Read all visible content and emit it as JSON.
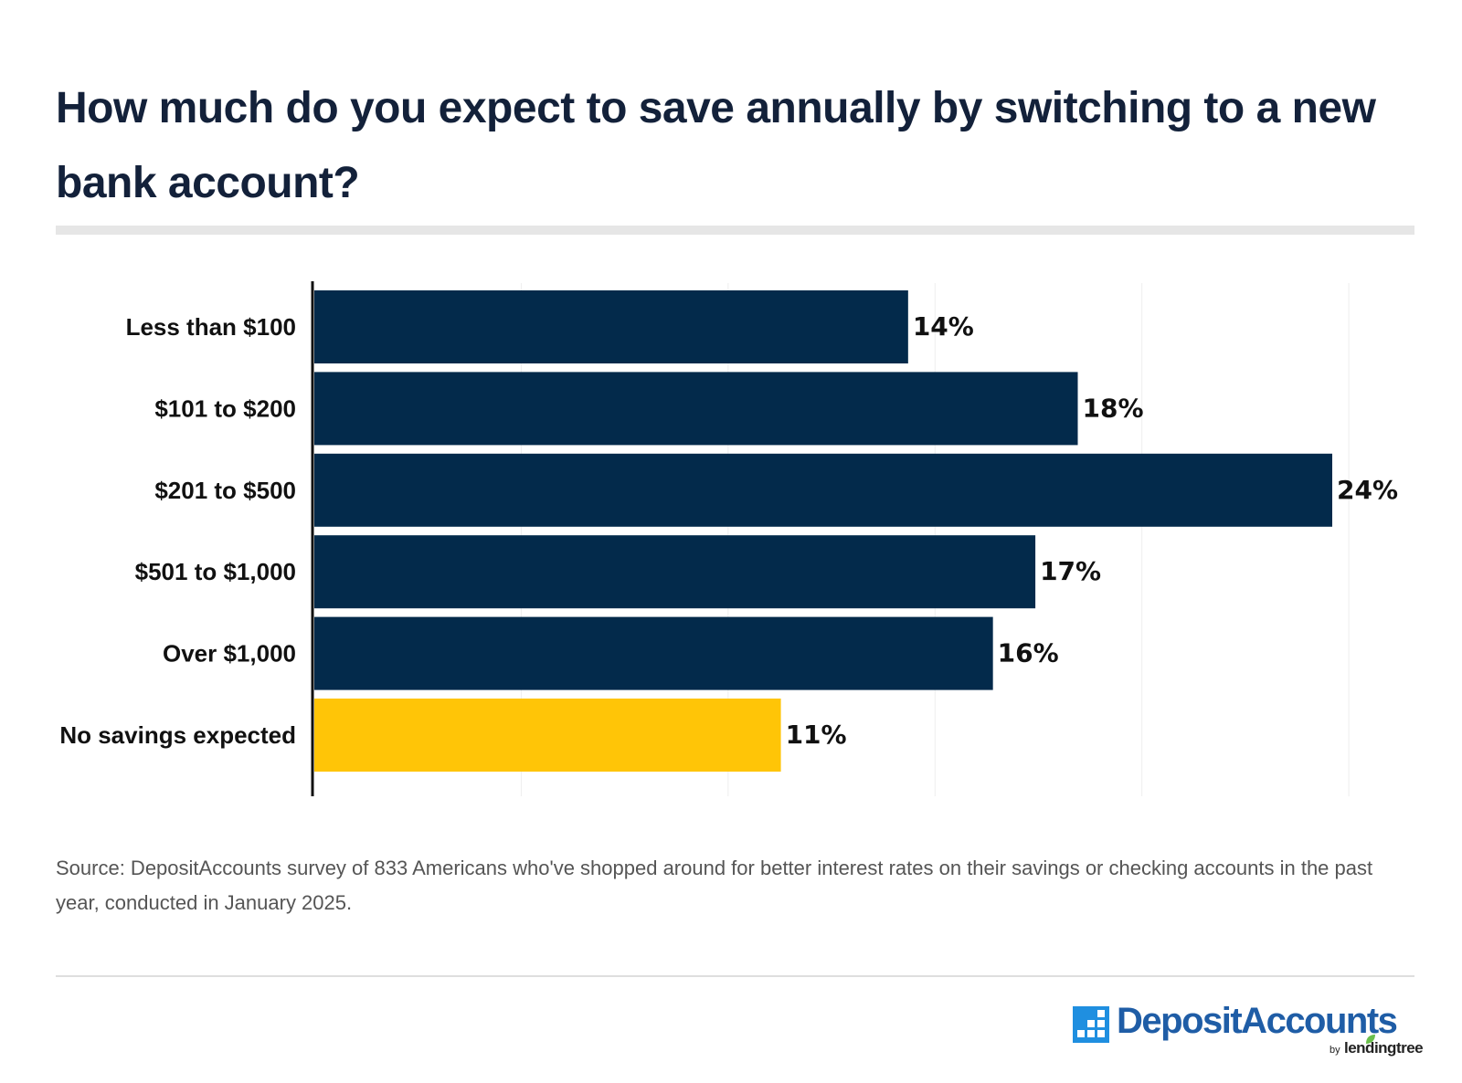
{
  "header": {
    "title": "How much do you expect to save annually by switching to a new bank account?"
  },
  "chart_data": {
    "type": "bar",
    "orientation": "horizontal",
    "title": "How much do you expect to save annually by switching to a new bank account?",
    "categories": [
      "Less than $100",
      "$101 to $200",
      "$201 to $500",
      "$501 to $1,000",
      "Over $1,000",
      "No savings expected"
    ],
    "values": [
      14,
      18,
      24,
      17,
      16,
      11
    ],
    "value_labels": [
      "14%",
      "18%",
      "24%",
      "17%",
      "16%",
      "11%"
    ],
    "colors": [
      "#032a4b",
      "#032a4b",
      "#032a4b",
      "#032a4b",
      "#032a4b",
      "#ffc507"
    ],
    "xlim": [
      0,
      24
    ],
    "xlabel": "",
    "ylabel": "",
    "grid": true
  },
  "footer": {
    "source": "Source: DepositAccounts survey of 833 Americans who've shopped around for better interest rates on their savings or checking accounts in the past year, conducted in January 2025.",
    "logo_text": "DepositAccounts",
    "logo_by": "by",
    "logo_partner": "lendingtree"
  },
  "colors": {
    "bar": "#032a4b",
    "highlight": "#ffc507",
    "logo": "#1f5da6",
    "title": "#13213a"
  },
  "icons": {
    "logo": "depositaccounts-grid-icon",
    "leaf": "lendingtree-leaf-icon"
  }
}
